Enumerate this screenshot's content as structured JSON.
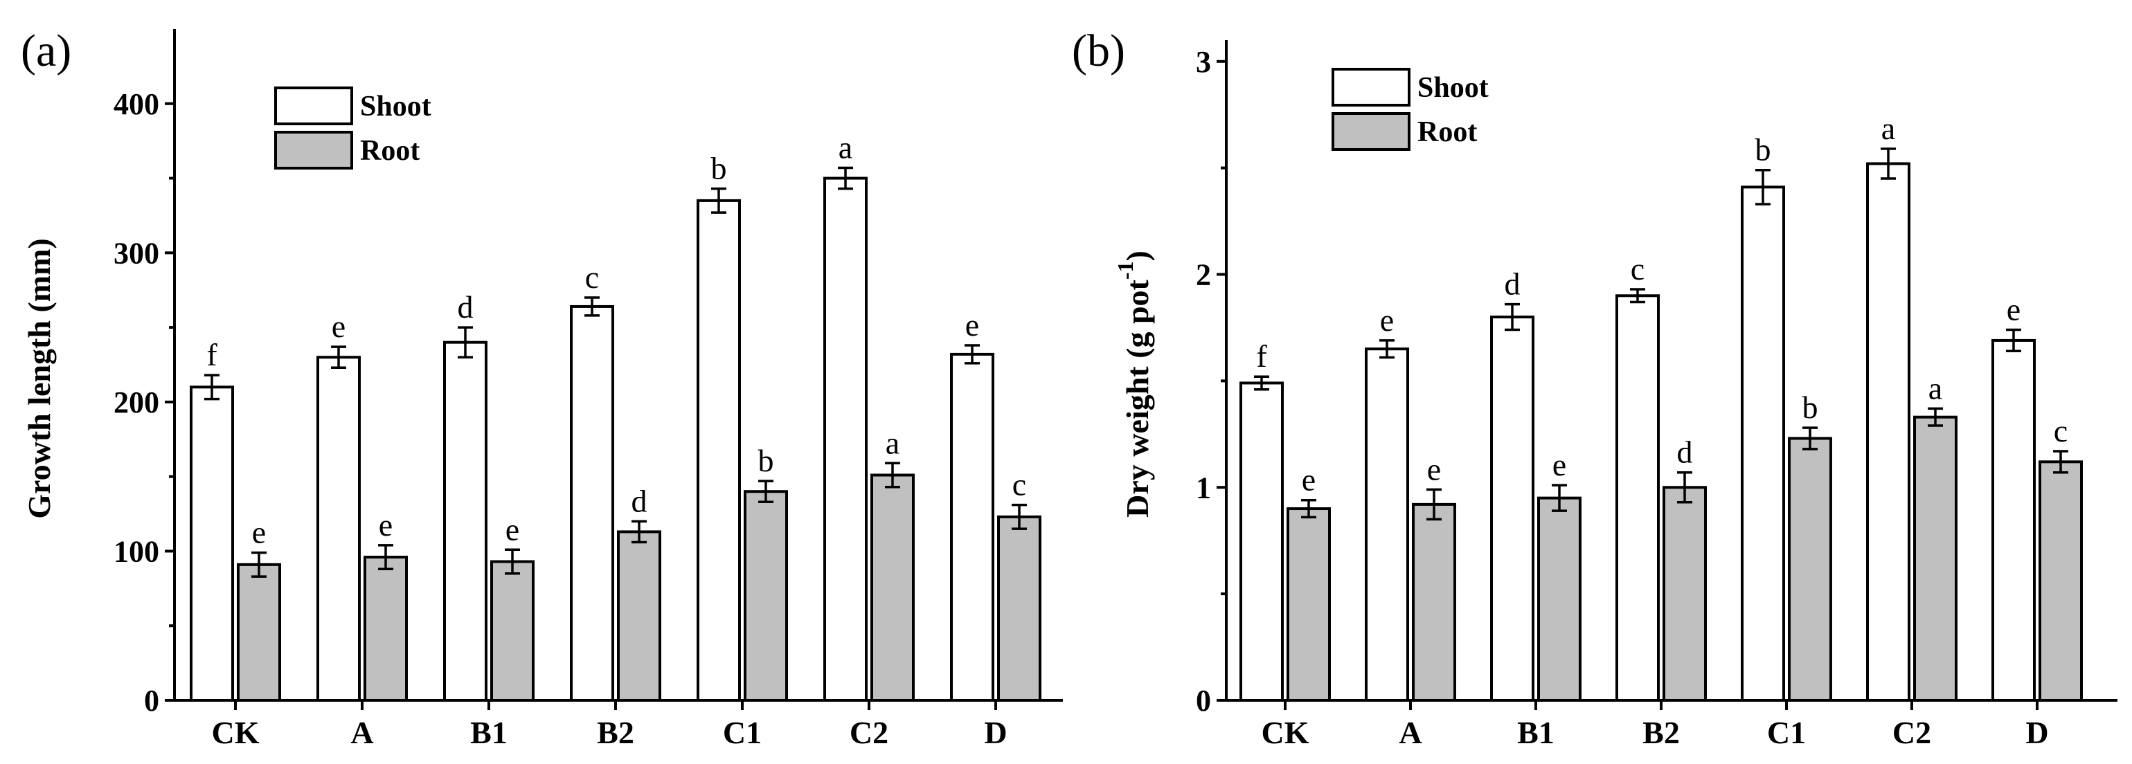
{
  "colors": {
    "shoot": "#ffffff",
    "root": "#c0c0c0",
    "outline": "#000000"
  },
  "chart_data": [
    {
      "type": "bar",
      "panel_label": "(a)",
      "title": "",
      "xlabel": "",
      "ylabel": "Growth length (mm)",
      "ylim": [
        0,
        450
      ],
      "yticks": [
        0,
        100,
        200,
        300,
        400
      ],
      "ytick_labels": [
        "0",
        "100",
        "200",
        "300",
        "400"
      ],
      "categories": [
        "CK",
        "A",
        "B1",
        "B2",
        "C1",
        "C2",
        "D"
      ],
      "legend": {
        "position": "top-left",
        "entries": [
          "Shoot",
          "Root"
        ]
      },
      "series": [
        {
          "name": "Shoot",
          "values": [
            210,
            230,
            240,
            264,
            335,
            350,
            232
          ],
          "errors": [
            8,
            7,
            10,
            6,
            8,
            7,
            6
          ],
          "sig": [
            "f",
            "e",
            "d",
            "c",
            "b",
            "a",
            "e"
          ]
        },
        {
          "name": "Root",
          "values": [
            91,
            96,
            93,
            113,
            140,
            151,
            123
          ],
          "errors": [
            8,
            8,
            8,
            7,
            7,
            8,
            8
          ],
          "sig": [
            "e",
            "e",
            "e",
            "d",
            "b",
            "a",
            "c"
          ]
        }
      ]
    },
    {
      "type": "bar",
      "panel_label": "(b)",
      "title": "",
      "xlabel": "",
      "ylabel": "Dry weight (g pot",
      "ylabel_sup": "-1",
      "ylabel_end": ")",
      "ylim": [
        0,
        3.1
      ],
      "yticks": [
        0,
        1,
        2,
        3
      ],
      "ytick_labels": [
        "0",
        "1",
        "2",
        "3"
      ],
      "categories": [
        "CK",
        "A",
        "B1",
        "B2",
        "C1",
        "C2",
        "D"
      ],
      "legend": {
        "position": "top-left",
        "entries": [
          "Shoot",
          "Root"
        ]
      },
      "series": [
        {
          "name": "Shoot",
          "values": [
            1.49,
            1.65,
            1.8,
            1.9,
            2.41,
            2.52,
            1.69
          ],
          "errors": [
            0.03,
            0.04,
            0.06,
            0.03,
            0.08,
            0.07,
            0.05
          ],
          "sig": [
            "f",
            "e",
            "d",
            "c",
            "b",
            "a",
            "e"
          ]
        },
        {
          "name": "Root",
          "values": [
            0.9,
            0.92,
            0.95,
            1.0,
            1.23,
            1.33,
            1.12
          ],
          "errors": [
            0.04,
            0.07,
            0.06,
            0.07,
            0.05,
            0.04,
            0.05
          ],
          "sig": [
            "e",
            "e",
            "e",
            "d",
            "b",
            "a",
            "c"
          ]
        }
      ]
    }
  ]
}
